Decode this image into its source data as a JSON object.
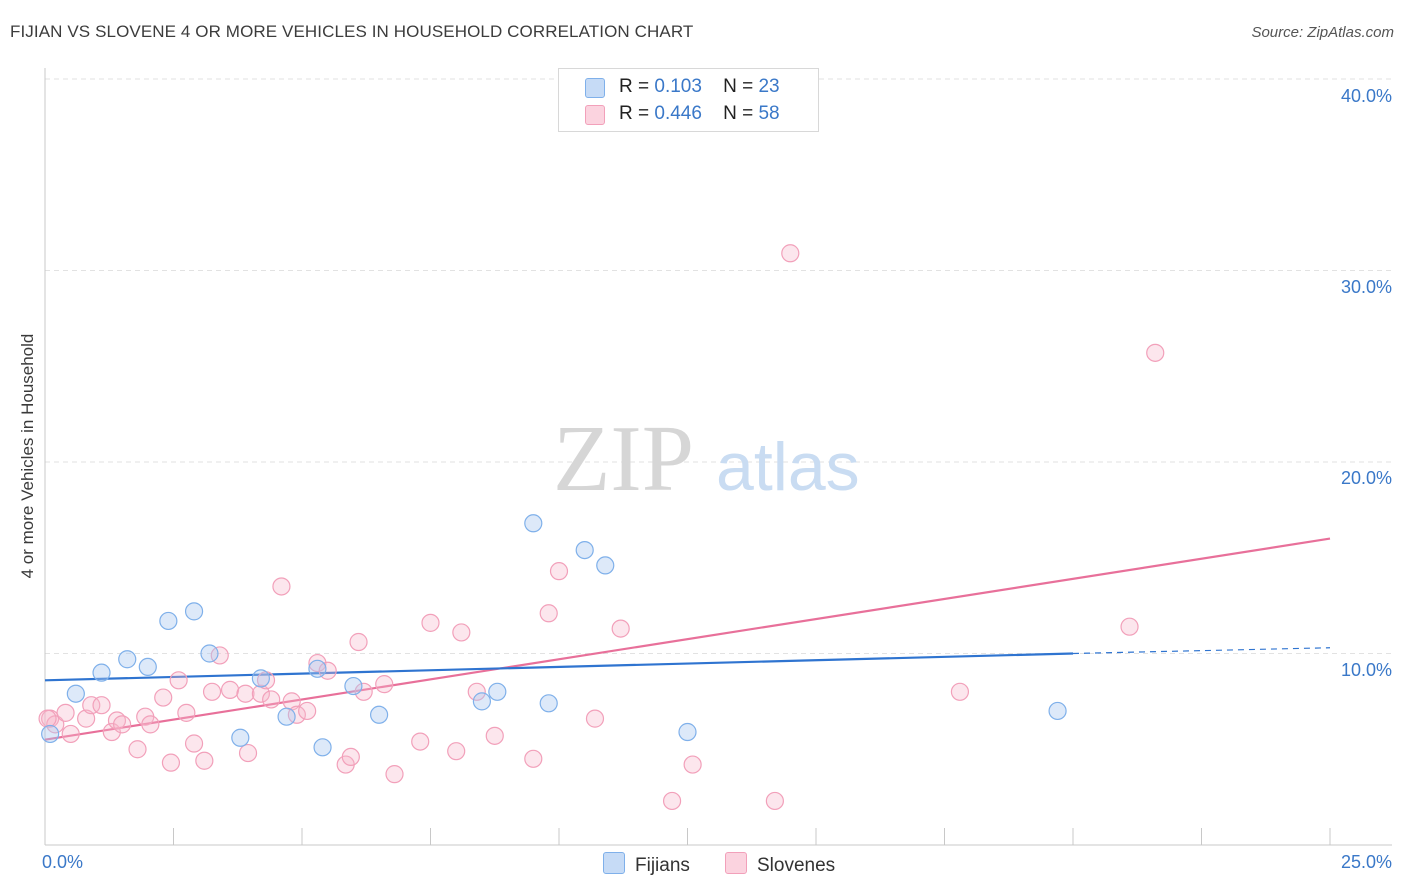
{
  "header": {
    "title": "FIJIAN VS SLOVENE 4 OR MORE VEHICLES IN HOUSEHOLD CORRELATION CHART",
    "source": "Source: ZipAtlas.com"
  },
  "watermark": {
    "zip": "ZIP",
    "atlas": "atlas"
  },
  "stats": [
    {
      "r_label": "R =",
      "r_value": "0.103",
      "n_label": "N =",
      "n_value": "23",
      "color": "#a9c8f0"
    },
    {
      "r_label": "R =",
      "r_value": "0.446",
      "n_label": "N =",
      "n_value": "58",
      "color": "#f7b8cb"
    }
  ],
  "legend": [
    {
      "label": "Fijians",
      "color": "#a9c8f0"
    },
    {
      "label": "Slovenes",
      "color": "#f7b8cb"
    }
  ],
  "axes": {
    "ylabel": "4 or more Vehicles in Household",
    "y_ticks": [
      "40.0%",
      "30.0%",
      "20.0%",
      "10.0%"
    ],
    "x_tick_left": "0.0%",
    "x_tick_right": "25.0%"
  },
  "chart_data": {
    "type": "scatter",
    "title": "FIJIAN VS SLOVENE 4 OR MORE VEHICLES IN HOUSEHOLD CORRELATION CHART",
    "xlabel": "",
    "ylabel": "4 or more Vehicles in Household",
    "xlim": [
      0,
      25
    ],
    "ylim": [
      0,
      40
    ],
    "x_unit": "%",
    "y_unit": "%",
    "grid": true,
    "legend_position": "bottom",
    "colors": {
      "Fijians": "#7fb0ea",
      "Slovenes": "#f2a0ba",
      "fijian_line": "#2f74d0",
      "slovene_line": "#e8709a"
    },
    "series": [
      {
        "name": "Fijians",
        "r": 0.103,
        "n": 23,
        "trend": {
          "x": [
            0,
            20
          ],
          "y": [
            8.6,
            10.0
          ],
          "dashed_to_x": 25,
          "dashed_end_y": 10.3
        },
        "points": [
          [
            0.1,
            5.8
          ],
          [
            0.6,
            7.9
          ],
          [
            1.1,
            9.0
          ],
          [
            1.6,
            9.7
          ],
          [
            2.0,
            9.3
          ],
          [
            2.4,
            11.7
          ],
          [
            2.9,
            12.2
          ],
          [
            3.2,
            10.0
          ],
          [
            3.8,
            5.6
          ],
          [
            4.2,
            8.7
          ],
          [
            4.7,
            6.7
          ],
          [
            5.3,
            9.2
          ],
          [
            5.4,
            5.1
          ],
          [
            6.0,
            8.3
          ],
          [
            6.5,
            6.8
          ],
          [
            8.5,
            7.5
          ],
          [
            8.8,
            8.0
          ],
          [
            9.5,
            16.8
          ],
          [
            9.8,
            7.4
          ],
          [
            10.5,
            15.4
          ],
          [
            10.9,
            14.6
          ],
          [
            12.5,
            5.9
          ],
          [
            19.7,
            7.0
          ]
        ]
      },
      {
        "name": "Slovenes",
        "r": 0.446,
        "n": 58,
        "trend": {
          "x": [
            0,
            25
          ],
          "y": [
            5.5,
            16.0
          ]
        },
        "points": [
          [
            0.1,
            6.6
          ],
          [
            0.2,
            6.3
          ],
          [
            0.4,
            6.9
          ],
          [
            0.5,
            5.8
          ],
          [
            0.8,
            6.6
          ],
          [
            0.9,
            7.3
          ],
          [
            1.1,
            7.3
          ],
          [
            1.3,
            5.9
          ],
          [
            1.4,
            6.5
          ],
          [
            1.5,
            6.3
          ],
          [
            1.8,
            5.0
          ],
          [
            1.95,
            6.7
          ],
          [
            2.05,
            6.3
          ],
          [
            2.3,
            7.7
          ],
          [
            2.45,
            4.3
          ],
          [
            2.6,
            8.6
          ],
          [
            2.75,
            6.9
          ],
          [
            2.9,
            5.3
          ],
          [
            3.1,
            4.4
          ],
          [
            3.25,
            8.0
          ],
          [
            3.4,
            9.9
          ],
          [
            3.6,
            8.1
          ],
          [
            3.9,
            7.9
          ],
          [
            3.95,
            4.8
          ],
          [
            4.2,
            7.9
          ],
          [
            4.3,
            8.6
          ],
          [
            4.4,
            7.6
          ],
          [
            4.6,
            13.5
          ],
          [
            4.8,
            7.5
          ],
          [
            4.9,
            6.8
          ],
          [
            5.1,
            7.0
          ],
          [
            5.3,
            9.5
          ],
          [
            5.5,
            9.1
          ],
          [
            5.85,
            4.2
          ],
          [
            5.95,
            4.6
          ],
          [
            6.1,
            10.6
          ],
          [
            6.2,
            8.0
          ],
          [
            6.6,
            8.4
          ],
          [
            6.8,
            3.7
          ],
          [
            7.3,
            5.4
          ],
          [
            7.5,
            11.6
          ],
          [
            8.0,
            4.9
          ],
          [
            8.1,
            11.1
          ],
          [
            8.4,
            8.0
          ],
          [
            8.75,
            5.7
          ],
          [
            9.5,
            4.5
          ],
          [
            9.8,
            12.1
          ],
          [
            10.0,
            14.3
          ],
          [
            10.7,
            6.6
          ],
          [
            11.2,
            11.3
          ],
          [
            12.2,
            2.3
          ],
          [
            12.6,
            4.2
          ],
          [
            14.2,
            2.3
          ],
          [
            14.5,
            30.9
          ],
          [
            17.8,
            8.0
          ],
          [
            21.1,
            11.4
          ],
          [
            21.6,
            25.7
          ],
          [
            0.05,
            6.6
          ]
        ]
      }
    ]
  }
}
